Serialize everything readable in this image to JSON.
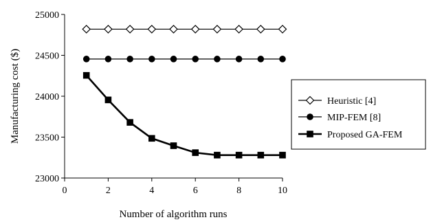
{
  "chart_data": {
    "type": "line",
    "x": [
      1,
      2,
      3,
      4,
      5,
      6,
      7,
      8,
      9,
      10
    ],
    "series": [
      {
        "name": "Heuristic [4]",
        "marker": "diamond-open",
        "values": [
          24820,
          24820,
          24820,
          24820,
          24820,
          24820,
          24820,
          24820,
          24820,
          24820
        ]
      },
      {
        "name": "MIP-FEM [8]",
        "marker": "circle-filled",
        "values": [
          24455,
          24455,
          24455,
          24455,
          24455,
          24455,
          24455,
          24455,
          24455,
          24455
        ]
      },
      {
        "name": "Proposed GA-FEM",
        "marker": "square-filled",
        "values": [
          24255,
          23955,
          23680,
          23485,
          23395,
          23310,
          23280,
          23280,
          23280,
          23280
        ]
      }
    ],
    "xlabel": "Number of algorithm runs",
    "ylabel": "Manufacturing cost ($)",
    "xlim": [
      0,
      10
    ],
    "ylim": [
      23000,
      25000
    ],
    "xticks": [
      0,
      2,
      4,
      6,
      8,
      10
    ],
    "yticks": [
      23000,
      23500,
      24000,
      24500,
      25000
    ],
    "grid": false,
    "legend": "right",
    "line_color": "#000000"
  }
}
